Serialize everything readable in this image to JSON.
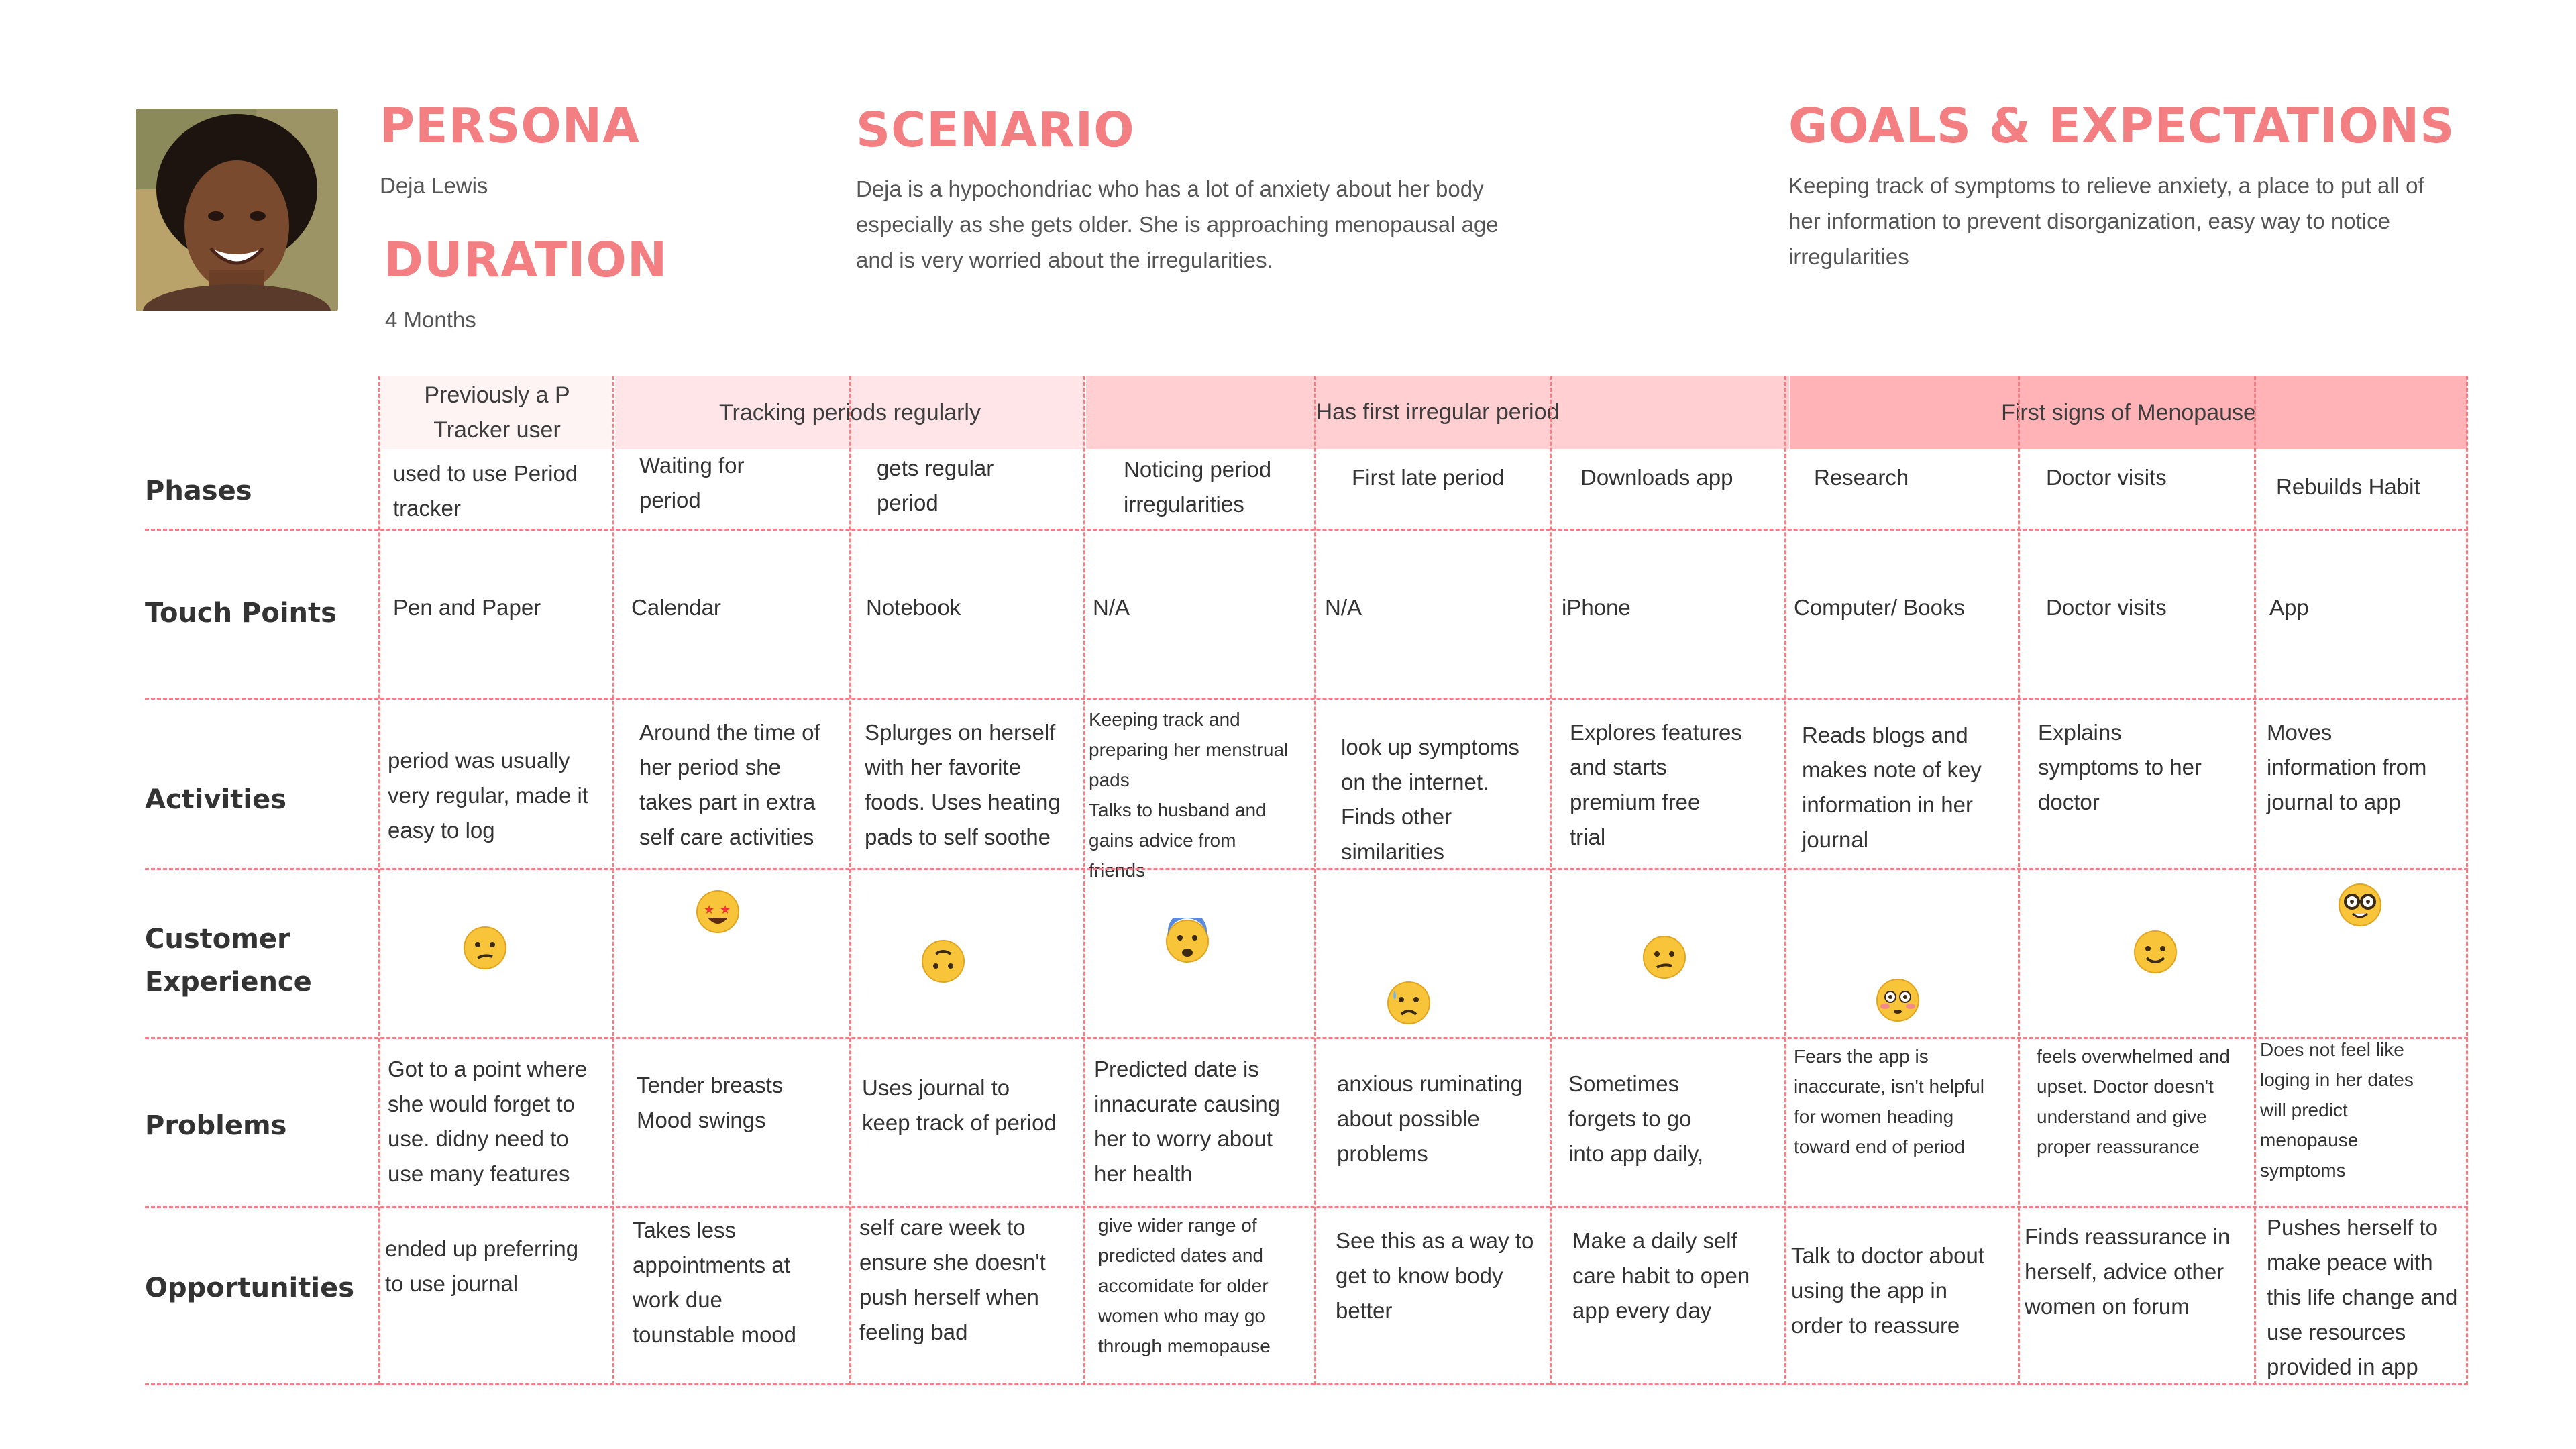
{
  "persona": {
    "heading": "PERSONA",
    "name": "Deja Lewis"
  },
  "duration": {
    "heading": "DURATION",
    "value": "4 Months"
  },
  "scenario": {
    "heading": "SCENARIO",
    "lines": [
      "Deja is a hypochondriac who has a lot of anxiety about her body",
      "especially as she gets older. She is approaching menopausal age",
      "and is very worried about the irregularities."
    ]
  },
  "goals": {
    "heading": "GOALS & EXPECTATIONS",
    "lines": [
      "Keeping track of symptoms to relieve anxiety, a place to put all of",
      "her information to prevent disorganization, easy way to notice",
      "irregularities"
    ]
  },
  "colors": {
    "accent": "#f47f82",
    "stage1": "#fff4f4",
    "stage2": "#ffe5e7",
    "stage3": "#ffcfd1",
    "stage4": "#ffb3b6"
  },
  "stages": [
    {
      "lines": [
        "Previously a P",
        "Tracker user"
      ]
    },
    {
      "lines": [
        "Tracking periods regularly"
      ]
    },
    {
      "lines": [
        "Has first irregular period"
      ]
    },
    {
      "lines": [
        "First signs of Menopause"
      ]
    }
  ],
  "row_labels": {
    "phases": [
      "Phases"
    ],
    "touch_points": [
      "Touch Points"
    ],
    "activities": [
      "Activities"
    ],
    "customer_experience": [
      "Customer",
      "Experience"
    ],
    "problems": [
      "Problems"
    ],
    "opportunities": [
      "Opportunities"
    ]
  },
  "phases": [
    [
      "used to use Period",
      "tracker"
    ],
    [
      "Waiting for",
      "period"
    ],
    [
      "gets regular",
      "period"
    ],
    [
      "Noticing period",
      "irregularities"
    ],
    [
      "First late period"
    ],
    [
      "Downloads app"
    ],
    [
      "Research"
    ],
    [
      "Doctor visits"
    ],
    [
      "Rebuilds Habit"
    ]
  ],
  "touch_points": [
    "Pen and Paper",
    "Calendar",
    "Notebook",
    "N/A",
    "N/A",
    "iPhone",
    "Computer/ Books",
    "Doctor visits",
    "App"
  ],
  "activities": [
    [
      "period was usually",
      "very regular, made it",
      "easy to log"
    ],
    [
      "Around the time of",
      "her period she",
      "takes part in extra",
      "self care activities"
    ],
    [
      "Splurges on herself",
      "with her favorite",
      "foods. Uses heating",
      "pads to self soothe"
    ],
    [
      "Keeping track and",
      "preparing her menstrual",
      "pads",
      "Talks to husband and",
      "gains advice from",
      "friends"
    ],
    [
      "look up symptoms",
      "on the internet.",
      "Finds other",
      "similarities"
    ],
    [
      "Explores features",
      "and starts",
      "premium free",
      "trial"
    ],
    [
      "Reads blogs and",
      "makes note of key",
      "information in her",
      "journal"
    ],
    [
      "Explains",
      "symptoms to her",
      "doctor"
    ],
    [
      "Moves",
      "information from",
      "journal to app"
    ]
  ],
  "customer_experience": [
    "confused-face-icon",
    "star-struck-face-icon",
    "upside-down-face-icon",
    "anxious-face-icon",
    "sad-sweat-face-icon",
    "confused-face-icon",
    "flushed-face-icon",
    "slightly-smiling-face-icon",
    "nerd-face-icon"
  ],
  "problems": [
    [
      "Got to a point where",
      "she would forget to",
      "use. didny need to",
      "use many features"
    ],
    [
      "Tender breasts",
      "Mood swings"
    ],
    [
      "Uses journal to",
      "keep track of period"
    ],
    [
      "Predicted date is",
      "innacurate causing",
      "her to worry about",
      "her health"
    ],
    [
      "anxious ruminating",
      "about possible",
      "problems"
    ],
    [
      "Sometimes",
      "forgets to go",
      "into app daily,"
    ],
    [
      "Fears the app is",
      "inaccurate, isn't helpful",
      "for women heading",
      "toward end of period"
    ],
    [
      "feels overwhelmed and",
      "upset. Doctor doesn't",
      "understand and give",
      "proper reassurance"
    ],
    [
      "Does not feel like",
      "loging in her dates",
      "will predict",
      "menopause",
      "symptoms"
    ]
  ],
  "opportunities": [
    [
      "ended up preferring",
      "to use journal"
    ],
    [
      "Takes less",
      "appointments at",
      "work due",
      "tounstable mood"
    ],
    [
      "self care week to",
      "ensure she doesn't",
      "push herself when",
      "feeling bad"
    ],
    [
      "give wider range of",
      "predicted dates and",
      "accomidate for older",
      "women who may go",
      "through memopause"
    ],
    [
      "See this as a way to",
      "get to know body",
      "better"
    ],
    [
      "Make a daily self",
      "care habit to open",
      "app every day"
    ],
    [
      "Talk to doctor about",
      "using the app in",
      "order to reassure"
    ],
    [
      "Finds reassurance in",
      "herself, advice other",
      "women on forum"
    ],
    [
      "Pushes herself to",
      "make peace with",
      "this life change and",
      "use resources",
      "provided in app"
    ]
  ]
}
